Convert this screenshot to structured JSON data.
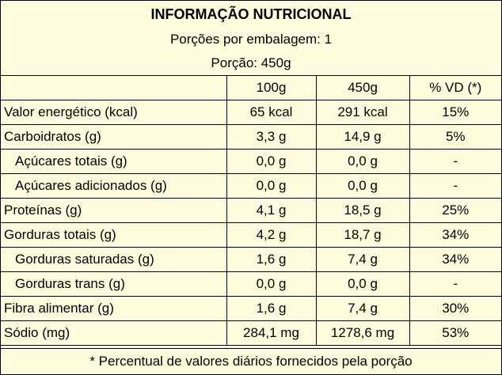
{
  "header": {
    "title": "INFORMAÇÃO NUTRICIONAL",
    "servings_per_package": "Porções por embalagem: 1",
    "portion": "Porção: 450g"
  },
  "columns": [
    "",
    "100g",
    "450g",
    "% VD (*)"
  ],
  "rows": [
    {
      "name": "Valor energético (kcal)",
      "sub": false,
      "v100": "65 kcal",
      "v450": "291 kcal",
      "vd": "15%"
    },
    {
      "name": "Carboidratos (g)",
      "sub": false,
      "v100": "3,3 g",
      "v450": "14,9 g",
      "vd": "5%"
    },
    {
      "name": "Açúcares totais (g)",
      "sub": true,
      "v100": "0,0 g",
      "v450": "0,0 g",
      "vd": "-"
    },
    {
      "name": "Açúcares adicionados (g)",
      "sub": true,
      "v100": "0,0 g",
      "v450": "0,0 g",
      "vd": "-"
    },
    {
      "name": "Proteínas (g)",
      "sub": false,
      "v100": "4,1 g",
      "v450": "18,5 g",
      "vd": "25%"
    },
    {
      "name": "Gorduras totais (g)",
      "sub": false,
      "v100": "4,2 g",
      "v450": "18,7 g",
      "vd": "34%"
    },
    {
      "name": "Gorduras saturadas (g)",
      "sub": true,
      "v100": "1,6 g",
      "v450": "7,4 g",
      "vd": "34%"
    },
    {
      "name": "Gorduras trans (g)",
      "sub": true,
      "v100": "0,0 g",
      "v450": "0,0 g",
      "vd": "-"
    },
    {
      "name": "Fibra alimentar (g)",
      "sub": false,
      "v100": "1,6 g",
      "v450": "7,4 g",
      "vd": "30%"
    },
    {
      "name": "Sódio (mg)",
      "sub": false,
      "v100": "284,1 mg",
      "v450": "1278,6 mg",
      "vd": "53%"
    }
  ],
  "footnote": "* Percentual de valores diários fornecidos pela porção",
  "colors": {
    "background": "#fefcdc",
    "border": "#000000"
  }
}
